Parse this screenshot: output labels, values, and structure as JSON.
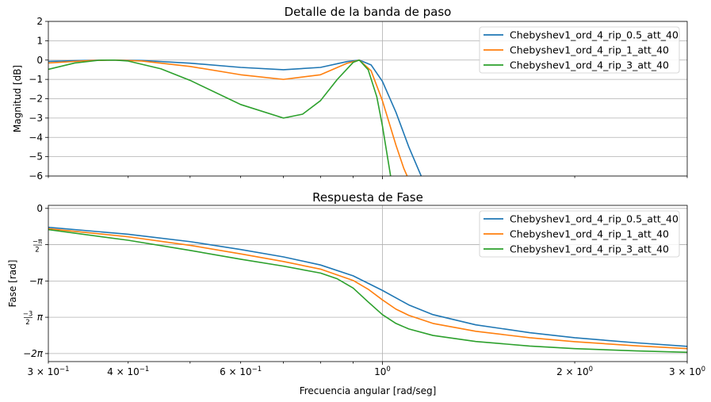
{
  "chart_data": [
    {
      "type": "line",
      "title": "Detalle de la banda de paso",
      "xlabel": "",
      "ylabel": "Magnitud [dB]",
      "xscale": "log",
      "xlim": [
        0.3,
        3.0
      ],
      "ylim": [
        -6,
        2
      ],
      "yticks": [
        2,
        1,
        0,
        -1,
        -2,
        -3,
        -4,
        -5,
        -6
      ],
      "ytick_labels": [
        "2",
        "1",
        "0",
        "−1",
        "−2",
        "−3",
        "−4",
        "−5",
        "−6"
      ],
      "xtick_labels": [],
      "grid": true,
      "legend": "top-right",
      "series": [
        {
          "name": "Chebyshev1_ord_4_rip_0.5_att_40",
          "color": "#1f77b4",
          "x": [
            0.3,
            0.35,
            0.38,
            0.42,
            0.5,
            0.6,
            0.7,
            0.8,
            0.88,
            0.92,
            0.96,
            1.0,
            1.05,
            1.1,
            1.15
          ],
          "y": [
            -0.07,
            -0.01,
            0.0,
            -0.02,
            -0.16,
            -0.38,
            -0.5,
            -0.38,
            -0.08,
            0.0,
            -0.25,
            -1.1,
            -2.7,
            -4.5,
            -6.0
          ]
        },
        {
          "name": "Chebyshev1_ord_4_rip_1_att_40",
          "color": "#ff7f0e",
          "x": [
            0.3,
            0.35,
            0.38,
            0.42,
            0.5,
            0.6,
            0.7,
            0.8,
            0.88,
            0.92,
            0.96,
            1.0,
            1.05,
            1.08,
            1.1
          ],
          "y": [
            -0.15,
            -0.02,
            0.0,
            -0.05,
            -0.33,
            -0.76,
            -1.0,
            -0.76,
            -0.17,
            0.0,
            -0.55,
            -2.1,
            -4.4,
            -5.6,
            -6.2
          ]
        },
        {
          "name": "Chebyshev1_ord_4_rip_3_att_40",
          "color": "#2ca02c",
          "x": [
            0.3,
            0.33,
            0.36,
            0.38,
            0.4,
            0.45,
            0.5,
            0.6,
            0.7,
            0.75,
            0.8,
            0.85,
            0.9,
            0.92,
            0.95,
            0.98,
            1.0,
            1.03
          ],
          "y": [
            -0.48,
            -0.15,
            -0.01,
            0.0,
            -0.05,
            -0.45,
            -1.05,
            -2.3,
            -3.0,
            -2.8,
            -2.1,
            -1.0,
            -0.12,
            0.0,
            -0.5,
            -1.9,
            -3.4,
            -6.0
          ]
        }
      ]
    },
    {
      "type": "line",
      "title": "Respuesta de Fase",
      "xlabel": "Frecuencia angular [rad/seg]",
      "ylabel": "Fase [rad]",
      "xscale": "log",
      "xlim": [
        0.3,
        3.0
      ],
      "ylim": [
        -6.63,
        0.13
      ],
      "yticks": [
        0,
        -1.5708,
        -3.1416,
        -4.7124,
        -6.2832
      ],
      "ytick_labels": [
        "0",
        "−π/2",
        "−π",
        "−3/2 π",
        "−2π"
      ],
      "xticks": [
        0.3,
        0.4,
        0.6,
        1.0,
        2.0,
        3.0
      ],
      "xtick_labels": [
        {
          "base": "3 × 10",
          "exp": "−1"
        },
        {
          "base": "4 × 10",
          "exp": "−1"
        },
        {
          "base": "6 × 10",
          "exp": "−1"
        },
        {
          "base": "10",
          "exp": "0"
        },
        {
          "base": "2 × 10",
          "exp": "0"
        },
        {
          "base": "3 × 10",
          "exp": "0"
        }
      ],
      "grid": true,
      "legend": "top-right",
      "series": [
        {
          "name": "Chebyshev1_ord_4_rip_0.5_att_40",
          "color": "#1f77b4",
          "x": [
            0.3,
            0.4,
            0.5,
            0.6,
            0.7,
            0.8,
            0.9,
            1.0,
            1.1,
            1.2,
            1.4,
            1.7,
            2.0,
            2.5,
            3.0
          ],
          "y": [
            -0.82,
            -1.12,
            -1.44,
            -1.78,
            -2.1,
            -2.45,
            -2.92,
            -3.55,
            -4.18,
            -4.6,
            -5.04,
            -5.38,
            -5.6,
            -5.82,
            -5.97
          ]
        },
        {
          "name": "Chebyshev1_ord_4_rip_1_att_40",
          "color": "#ff7f0e",
          "x": [
            0.3,
            0.4,
            0.5,
            0.6,
            0.7,
            0.8,
            0.9,
            0.95,
            1.0,
            1.05,
            1.1,
            1.2,
            1.4,
            1.7,
            2.0,
            2.5,
            3.0
          ],
          "y": [
            -0.88,
            -1.23,
            -1.6,
            -1.97,
            -2.3,
            -2.63,
            -3.12,
            -3.5,
            -3.96,
            -4.36,
            -4.63,
            -4.98,
            -5.32,
            -5.6,
            -5.77,
            -5.95,
            -6.07
          ]
        },
        {
          "name": "Chebyshev1_ord_4_rip_3_att_40",
          "color": "#2ca02c",
          "x": [
            0.3,
            0.4,
            0.5,
            0.6,
            0.7,
            0.8,
            0.85,
            0.9,
            0.95,
            1.0,
            1.05,
            1.1,
            1.2,
            1.4,
            1.7,
            2.0,
            2.5,
            3.0
          ],
          "y": [
            -0.92,
            -1.38,
            -1.82,
            -2.2,
            -2.5,
            -2.8,
            -3.05,
            -3.45,
            -4.05,
            -4.6,
            -4.98,
            -5.22,
            -5.5,
            -5.76,
            -5.96,
            -6.07,
            -6.17,
            -6.23
          ]
        }
      ]
    }
  ]
}
